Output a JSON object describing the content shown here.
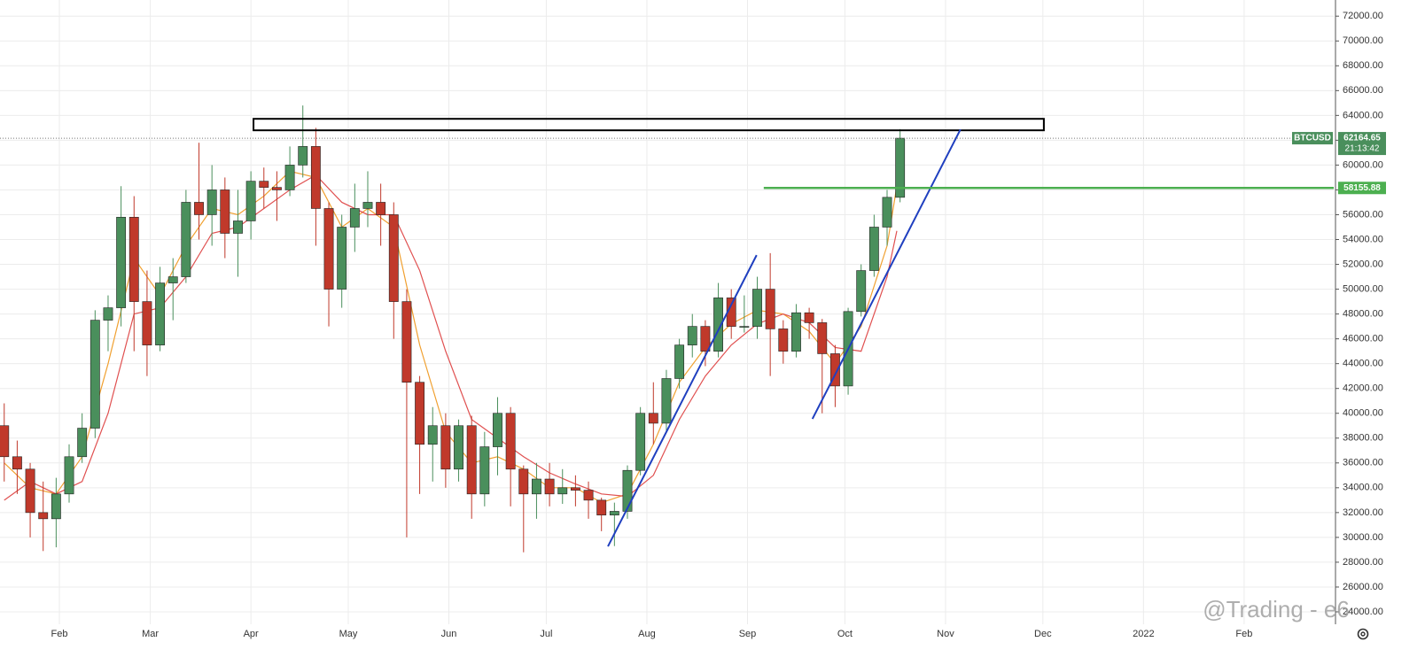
{
  "chart_data": {
    "type": "candlestick",
    "symbol": "BTCUSD",
    "countdown": "21:13:42",
    "watermark": "@Trading - e6",
    "up_color": "#4a8f5c",
    "down_color": "#c0392b",
    "grid": true,
    "xlim": [
      12.7,
      423.6
    ],
    "xticks": [
      {
        "value": 31,
        "label": "Feb"
      },
      {
        "value": 59,
        "label": "Mar"
      },
      {
        "value": 90,
        "label": "Apr"
      },
      {
        "value": 120,
        "label": "May"
      },
      {
        "value": 151,
        "label": "Jun"
      },
      {
        "value": 181,
        "label": "Jul"
      },
      {
        "value": 212,
        "label": "Aug"
      },
      {
        "value": 243,
        "label": "Sep"
      },
      {
        "value": 273,
        "label": "Oct"
      },
      {
        "value": 304,
        "label": "Nov"
      },
      {
        "value": 334,
        "label": "Dec"
      },
      {
        "value": 365,
        "label": "2022"
      },
      {
        "value": 396,
        "label": "Feb"
      }
    ],
    "ylim": [
      23000,
      73300
    ],
    "yticks": [
      {
        "value": 24000,
        "label": "24000.00"
      },
      {
        "value": 26000,
        "label": "26000.00"
      },
      {
        "value": 28000,
        "label": "28000.00"
      },
      {
        "value": 30000,
        "label": "30000.00"
      },
      {
        "value": 32000,
        "label": "32000.00"
      },
      {
        "value": 34000,
        "label": "34000.00"
      },
      {
        "value": 36000,
        "label": "36000.00"
      },
      {
        "value": 38000,
        "label": "38000.00"
      },
      {
        "value": 40000,
        "label": "40000.00"
      },
      {
        "value": 42000,
        "label": "42000.00"
      },
      {
        "value": 44000,
        "label": "44000.00"
      },
      {
        "value": 46000,
        "label": "46000.00"
      },
      {
        "value": 48000,
        "label": "48000.00"
      },
      {
        "value": 50000,
        "label": "50000.00"
      },
      {
        "value": 52000,
        "label": "52000.00"
      },
      {
        "value": 54000,
        "label": "54000.00"
      },
      {
        "value": 56000,
        "label": "56000.00"
      },
      {
        "value": 58000,
        "label": "58000.00"
      },
      {
        "value": 60000,
        "label": "60000.00"
      },
      {
        "value": 62000,
        "label": "62000.00"
      },
      {
        "value": 64000,
        "label": "64000.00"
      },
      {
        "value": 66000,
        "label": "66000.00"
      },
      {
        "value": 68000,
        "label": "68000.00"
      },
      {
        "value": 70000,
        "label": "70000.00"
      },
      {
        "value": 72000,
        "label": "72000.00"
      }
    ],
    "x": [
      14,
      18,
      22,
      26,
      30,
      34,
      38,
      42,
      46,
      50,
      54,
      58,
      62,
      66,
      70,
      74,
      78,
      82,
      86,
      90,
      94,
      98,
      102,
      106,
      110,
      114,
      118,
      122,
      126,
      130,
      134,
      138,
      142,
      146,
      150,
      154,
      158,
      162,
      166,
      170,
      174,
      178,
      182,
      186,
      190,
      194,
      198,
      202,
      206,
      210,
      214,
      218,
      222,
      226,
      230,
      234,
      238,
      242,
      246,
      250,
      254,
      258,
      262,
      266,
      270,
      274,
      278,
      282,
      286,
      290
    ],
    "open": [
      39000,
      36500,
      35500,
      32000,
      31500,
      33500,
      36500,
      38800,
      47500,
      48500,
      55800,
      49000,
      45500,
      50500,
      51000,
      57000,
      56000,
      58000,
      54500,
      55500,
      58700,
      58200,
      58000,
      60000,
      61500,
      56500,
      50000,
      55000,
      56500,
      57000,
      56000,
      49000,
      42500,
      37500,
      39000,
      35500,
      39000,
      33500,
      37300,
      40000,
      35500,
      33500,
      34700,
      33500,
      34000,
      33800,
      33000,
      31800,
      32100,
      35400,
      40000,
      39200,
      42800,
      45500,
      47000,
      45000,
      49300,
      47000,
      47000,
      50000,
      46800,
      45000,
      48100,
      47300,
      44800,
      42200,
      48200,
      51500,
      55000,
      57400
    ],
    "high": [
      40800,
      37800,
      36000,
      34500,
      34800,
      37500,
      40000,
      48300,
      49500,
      58300,
      57500,
      51500,
      51800,
      52500,
      58000,
      61800,
      60000,
      59000,
      58000,
      59500,
      59800,
      59500,
      61500,
      64800,
      63000,
      57000,
      56000,
      58500,
      59500,
      58500,
      57000,
      50000,
      43000,
      40500,
      40000,
      39500,
      39800,
      38500,
      41300,
      40500,
      35800,
      36000,
      36000,
      35500,
      35000,
      34500,
      33200,
      32800,
      35800,
      40500,
      42500,
      43500,
      46000,
      48000,
      47500,
      50500,
      50000,
      49500,
      51000,
      52900,
      47500,
      48800,
      48500,
      47600,
      45500,
      48500,
      52000,
      56000,
      58000,
      62900
    ],
    "low": [
      34500,
      33500,
      30000,
      28900,
      29200,
      32800,
      36000,
      38000,
      45000,
      47000,
      45000,
      43000,
      45000,
      47500,
      50500,
      54000,
      53500,
      52500,
      51000,
      54000,
      56500,
      55500,
      57500,
      59000,
      53500,
      47000,
      48500,
      53000,
      55000,
      53500,
      46000,
      30000,
      33500,
      34500,
      34000,
      34500,
      31500,
      32500,
      35000,
      32500,
      28800,
      31500,
      32500,
      32700,
      32500,
      31500,
      30500,
      29300,
      31500,
      35000,
      37500,
      38500,
      42000,
      44500,
      43800,
      44500,
      46000,
      46500,
      46000,
      43000,
      44000,
      44500,
      46000,
      40000,
      40500,
      41500,
      47800,
      51000,
      53500,
      57000
    ],
    "close": [
      36500,
      35500,
      32000,
      31500,
      33500,
      36500,
      38800,
      47500,
      48500,
      55800,
      49000,
      45500,
      50500,
      51000,
      57000,
      56000,
      58000,
      54500,
      55500,
      58700,
      58200,
      58000,
      60000,
      61500,
      56500,
      50000,
      55000,
      56500,
      57000,
      56000,
      49000,
      42500,
      37500,
      39000,
      35500,
      39000,
      33500,
      37300,
      40000,
      35500,
      33500,
      34700,
      33500,
      34000,
      33800,
      33000,
      31800,
      32100,
      35400,
      40000,
      39200,
      42800,
      45500,
      47000,
      45000,
      49300,
      47000,
      47000,
      50000,
      46800,
      45000,
      48100,
      47300,
      44800,
      42200,
      48200,
      51500,
      55000,
      57400,
      62164.65
    ],
    "series": [
      {
        "color": "#f0a030",
        "x": [
          14,
          22,
          30,
          38,
          46,
          54,
          62,
          70,
          78,
          86,
          94,
          102,
          110,
          118,
          126,
          134,
          142,
          150,
          158,
          166,
          174,
          182,
          190,
          198,
          206,
          214,
          222,
          230,
          238,
          246,
          254,
          262,
          270,
          278,
          286,
          289
        ],
        "values": [
          36000,
          34000,
          33500,
          36500,
          44000,
          52500,
          49500,
          53500,
          56500,
          56000,
          57500,
          59500,
          59000,
          55000,
          56500,
          55000,
          45500,
          38500,
          36000,
          36500,
          35500,
          34000,
          34000,
          32800,
          33500,
          37500,
          42500,
          45300,
          47200,
          48300,
          48000,
          46600,
          44000,
          47000,
          53500,
          58300
        ]
      },
      {
        "color": "#e05050",
        "x": [
          14,
          22,
          30,
          38,
          46,
          54,
          62,
          70,
          78,
          86,
          94,
          102,
          110,
          118,
          126,
          134,
          142,
          150,
          158,
          166,
          174,
          182,
          190,
          198,
          206,
          214,
          222,
          230,
          238,
          246,
          254,
          262,
          270,
          278,
          286,
          289
        ],
        "values": [
          33000,
          34500,
          33500,
          34500,
          40000,
          48000,
          48500,
          51000,
          54500,
          55000,
          56500,
          58000,
          59200,
          57000,
          56000,
          56000,
          51500,
          45000,
          39500,
          38000,
          36500,
          35200,
          34300,
          33500,
          33300,
          35000,
          39500,
          43000,
          45500,
          47200,
          48000,
          47300,
          45300,
          45000,
          51000,
          54700
        ]
      }
    ],
    "trend_lines": [
      {
        "color": "#1f3fbf",
        "x": [
          200,
          245.8
        ],
        "y": [
          29275,
          52742
        ]
      },
      {
        "color": "#1f3fbf",
        "x": [
          263,
          308.6
        ],
        "y": [
          39546,
          62870
        ]
      }
    ],
    "zone": {
      "x": [
        90.8,
        334.3
      ],
      "y": [
        62800,
        63726
      ]
    },
    "level": {
      "value": 58155.88,
      "x_start": 248,
      "color": "#4caf50"
    }
  }
}
